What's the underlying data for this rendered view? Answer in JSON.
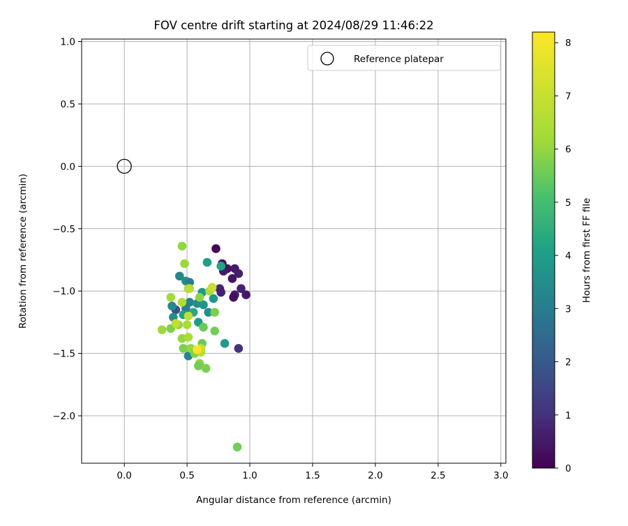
{
  "chart_data": {
    "type": "scatter",
    "title": "FOV centre drift starting at 2024/08/29 11:46:22",
    "xlabel": "Angular distance from reference (arcmin)",
    "ylabel": "Rotation from reference (arcmin)",
    "xlim": [
      -0.34,
      3.04
    ],
    "ylim": [
      -2.38,
      1.02
    ],
    "xticks": [
      0.0,
      0.5,
      1.0,
      1.5,
      2.0,
      2.5,
      3.0
    ],
    "xtick_labels": [
      "0.0",
      "0.5",
      "1.0",
      "1.5",
      "2.0",
      "2.5",
      "3.0"
    ],
    "yticks": [
      1.0,
      0.5,
      0.0,
      -0.5,
      -1.0,
      -1.5,
      -2.0
    ],
    "ytick_labels": [
      "1.0",
      "0.5",
      "0.0",
      "−0.5",
      "−1.0",
      "−1.5",
      "−2.0"
    ],
    "grid": true,
    "legend": {
      "position": "upper-right",
      "entries": [
        {
          "label": "Reference platepar",
          "marker": "open-circle"
        }
      ]
    },
    "reference": {
      "x": 0.0,
      "y": 0.0
    },
    "colorbar": {
      "label": "Hours from first FF file",
      "colormap": "viridis",
      "range": [
        0,
        8.2
      ],
      "ticks": [
        0,
        1,
        2,
        3,
        4,
        5,
        6,
        7,
        8
      ],
      "tick_labels": [
        "0",
        "1",
        "2",
        "3",
        "4",
        "5",
        "6",
        "7",
        "8"
      ]
    },
    "points": [
      {
        "x": 0.73,
        "y": -0.66,
        "c": 0.1
      },
      {
        "x": 0.78,
        "y": -0.78,
        "c": 0.3
      },
      {
        "x": 0.82,
        "y": -0.82,
        "c": 0.4
      },
      {
        "x": 0.88,
        "y": -0.82,
        "c": 0.5
      },
      {
        "x": 0.91,
        "y": -0.86,
        "c": 0.6
      },
      {
        "x": 0.79,
        "y": -0.84,
        "c": 0.5
      },
      {
        "x": 0.86,
        "y": -0.9,
        "c": 0.4
      },
      {
        "x": 0.76,
        "y": -0.98,
        "c": 0.8
      },
      {
        "x": 0.93,
        "y": -0.98,
        "c": 0.7
      },
      {
        "x": 0.97,
        "y": -1.03,
        "c": 0.5
      },
      {
        "x": 0.88,
        "y": -1.03,
        "c": 0.6
      },
      {
        "x": 0.87,
        "y": -1.05,
        "c": 0.3
      },
      {
        "x": 0.77,
        "y": -1.01,
        "c": 0.7
      },
      {
        "x": 0.91,
        "y": -1.46,
        "c": 1.0
      },
      {
        "x": 0.41,
        "y": -1.15,
        "c": 1.8
      },
      {
        "x": 0.77,
        "y": -0.8,
        "c": 4.2
      },
      {
        "x": 0.66,
        "y": -0.77,
        "c": 4.0
      },
      {
        "x": 0.44,
        "y": -0.88,
        "c": 3.3
      },
      {
        "x": 0.49,
        "y": -0.92,
        "c": 3.6
      },
      {
        "x": 0.52,
        "y": -0.93,
        "c": 3.0
      },
      {
        "x": 0.62,
        "y": -1.01,
        "c": 3.8
      },
      {
        "x": 0.71,
        "y": -1.06,
        "c": 3.9
      },
      {
        "x": 0.52,
        "y": -1.09,
        "c": 3.2
      },
      {
        "x": 0.38,
        "y": -1.12,
        "c": 3.4
      },
      {
        "x": 0.58,
        "y": -1.1,
        "c": 3.5
      },
      {
        "x": 0.63,
        "y": -1.11,
        "c": 3.7
      },
      {
        "x": 0.67,
        "y": -1.17,
        "c": 3.6
      },
      {
        "x": 0.49,
        "y": -1.14,
        "c": 3.1
      },
      {
        "x": 0.39,
        "y": -1.21,
        "c": 3.5
      },
      {
        "x": 0.47,
        "y": -1.19,
        "c": 4.1
      },
      {
        "x": 0.55,
        "y": -1.17,
        "c": 4.3
      },
      {
        "x": 0.59,
        "y": -1.25,
        "c": 4.0
      },
      {
        "x": 0.8,
        "y": -1.42,
        "c": 3.9
      },
      {
        "x": 0.51,
        "y": -1.52,
        "c": 3.3
      },
      {
        "x": 0.72,
        "y": -1.17,
        "c": 5.7
      },
      {
        "x": 0.6,
        "y": -1.05,
        "c": 5.9
      },
      {
        "x": 0.51,
        "y": -0.98,
        "c": 6.2
      },
      {
        "x": 0.68,
        "y": -1.0,
        "c": 6.4
      },
      {
        "x": 0.63,
        "y": -1.29,
        "c": 5.5
      },
      {
        "x": 0.72,
        "y": -1.32,
        "c": 5.6
      },
      {
        "x": 0.3,
        "y": -1.31,
        "c": 6.1
      },
      {
        "x": 0.37,
        "y": -1.3,
        "c": 5.8
      },
      {
        "x": 0.43,
        "y": -1.27,
        "c": 5.9
      },
      {
        "x": 0.5,
        "y": -1.27,
        "c": 6.3
      },
      {
        "x": 0.46,
        "y": -1.38,
        "c": 6.0
      },
      {
        "x": 0.51,
        "y": -1.37,
        "c": 6.4
      },
      {
        "x": 0.47,
        "y": -1.46,
        "c": 5.7
      },
      {
        "x": 0.53,
        "y": -1.46,
        "c": 6.0
      },
      {
        "x": 0.56,
        "y": -1.5,
        "c": 5.8
      },
      {
        "x": 0.62,
        "y": -1.42,
        "c": 5.5
      },
      {
        "x": 0.61,
        "y": -1.49,
        "c": 6.6
      },
      {
        "x": 0.6,
        "y": -1.58,
        "c": 5.9
      },
      {
        "x": 0.59,
        "y": -1.6,
        "c": 5.6
      },
      {
        "x": 0.65,
        "y": -1.62,
        "c": 5.7
      },
      {
        "x": 0.46,
        "y": -0.64,
        "c": 6.0
      },
      {
        "x": 0.48,
        "y": -0.78,
        "c": 6.1
      },
      {
        "x": 0.52,
        "y": -0.98,
        "c": 6.7
      },
      {
        "x": 0.7,
        "y": -0.97,
        "c": 7.0
      },
      {
        "x": 0.37,
        "y": -1.05,
        "c": 6.2
      },
      {
        "x": 0.46,
        "y": -1.09,
        "c": 6.5
      },
      {
        "x": 0.51,
        "y": -1.2,
        "c": 6.8
      },
      {
        "x": 0.41,
        "y": -1.26,
        "c": 6.9
      },
      {
        "x": 0.61,
        "y": -1.46,
        "c": 7.0
      },
      {
        "x": 0.58,
        "y": -1.47,
        "c": 8.1
      },
      {
        "x": 0.9,
        "y": -2.25,
        "c": 5.6
      }
    ]
  }
}
